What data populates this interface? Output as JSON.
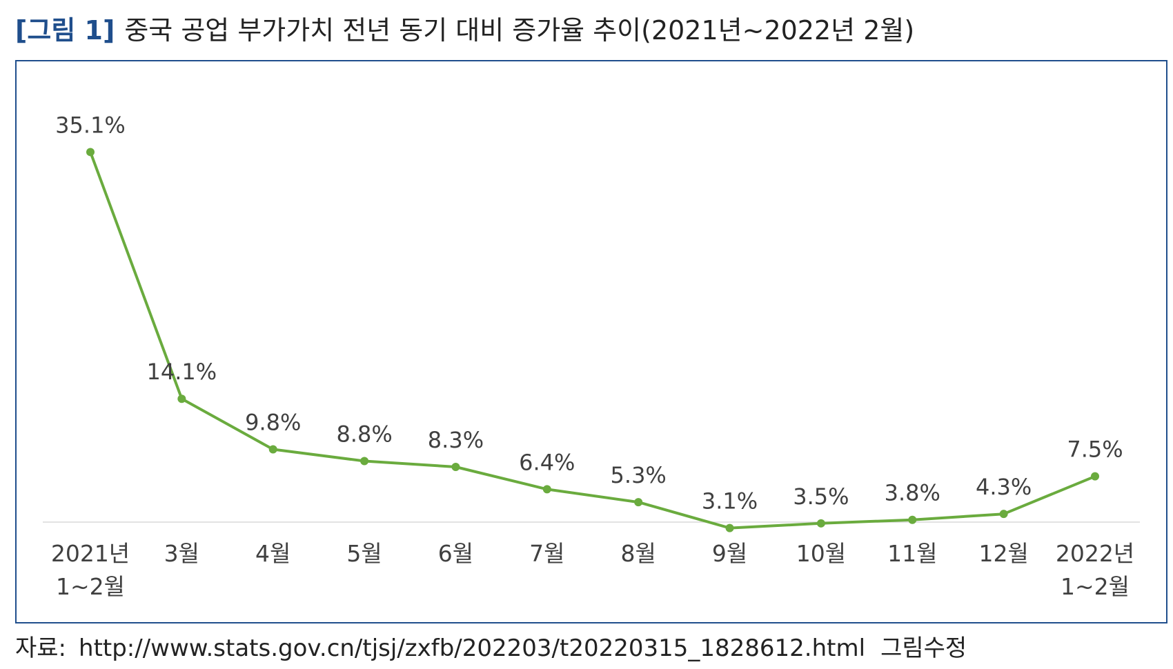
{
  "figure": {
    "number_label": "[그림 1]",
    "title": "중국 공업 부가가치 전년 동기 대비 증가율 추이(2021년~2022년 2월)"
  },
  "chart_data": {
    "type": "line",
    "title": "중국 공업 부가가치 전년 동기 대비 증가율 추이(2021년~2022년 2월)",
    "categories": [
      [
        "2021년",
        "1~2월"
      ],
      [
        "3월"
      ],
      [
        "4월"
      ],
      [
        "5월"
      ],
      [
        "6월"
      ],
      [
        "7월"
      ],
      [
        "8월"
      ],
      [
        "9월"
      ],
      [
        "10월"
      ],
      [
        "11월"
      ],
      [
        "12월"
      ],
      [
        "2022년",
        "1~2월"
      ]
    ],
    "series": [
      {
        "values": [
          35.1,
          14.1,
          9.8,
          8.8,
          8.3,
          6.4,
          5.3,
          3.1,
          3.5,
          3.8,
          4.3,
          7.5
        ],
        "value_labels": [
          "35.1%",
          "14.1%",
          "9.8%",
          "8.8%",
          "8.3%",
          "6.4%",
          "5.3%",
          "3.1%",
          "3.5%",
          "3.8%",
          "4.3%",
          "7.5%"
        ],
        "color": "#6aab3e"
      }
    ],
    "ylim": [
      -1.5,
      39
    ],
    "grid": false,
    "legend": "none",
    "axis_color": "#d9d9d9",
    "label_color": "#404040"
  },
  "source": {
    "label": "자료:",
    "url": "http://www.stats.gov.cn/tjsj/zxfb/202203/t20220315_1828612.html",
    "note": "그림수정"
  }
}
